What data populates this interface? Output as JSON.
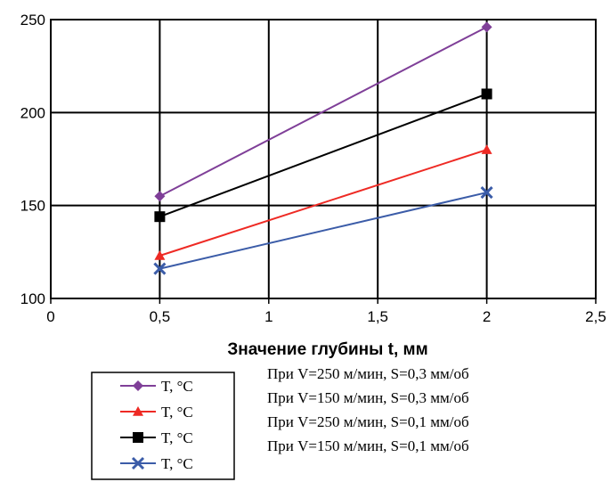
{
  "chart_data": {
    "type": "line",
    "xlabel": "Значение глубины t, мм",
    "ylabel": "",
    "xlim": [
      0,
      2.5
    ],
    "ylim": [
      100,
      250
    ],
    "grid": true,
    "x_ticks": [
      "0",
      "0,5",
      "1",
      "1,5",
      "2",
      "2,5"
    ],
    "y_ticks": [
      "100",
      "150",
      "200",
      "250"
    ],
    "x": [
      0.5,
      2
    ],
    "series": [
      {
        "name": "T, °C",
        "marker": "diamond",
        "color": "#7f3f98",
        "values": [
          155,
          246
        ]
      },
      {
        "name": "T, °C",
        "marker": "triangle",
        "color": "#ee2a24",
        "values": [
          123,
          180
        ]
      },
      {
        "name": "T, °C",
        "marker": "square",
        "color": "#000000",
        "values": [
          144,
          210
        ]
      },
      {
        "name": "T, °C",
        "marker": "x",
        "color": "#3b5ca8",
        "values": [
          116,
          157
        ]
      }
    ],
    "legend_placement": "bottom-left"
  },
  "conditions": [
    "При V=250 м/мин, S=0,3 мм/об",
    "При V=150 м/мин, S=0,3 мм/об",
    "При V=250 м/мин, S=0,1 мм/об",
    "При V=150 м/мин, S=0,1 мм/об"
  ]
}
